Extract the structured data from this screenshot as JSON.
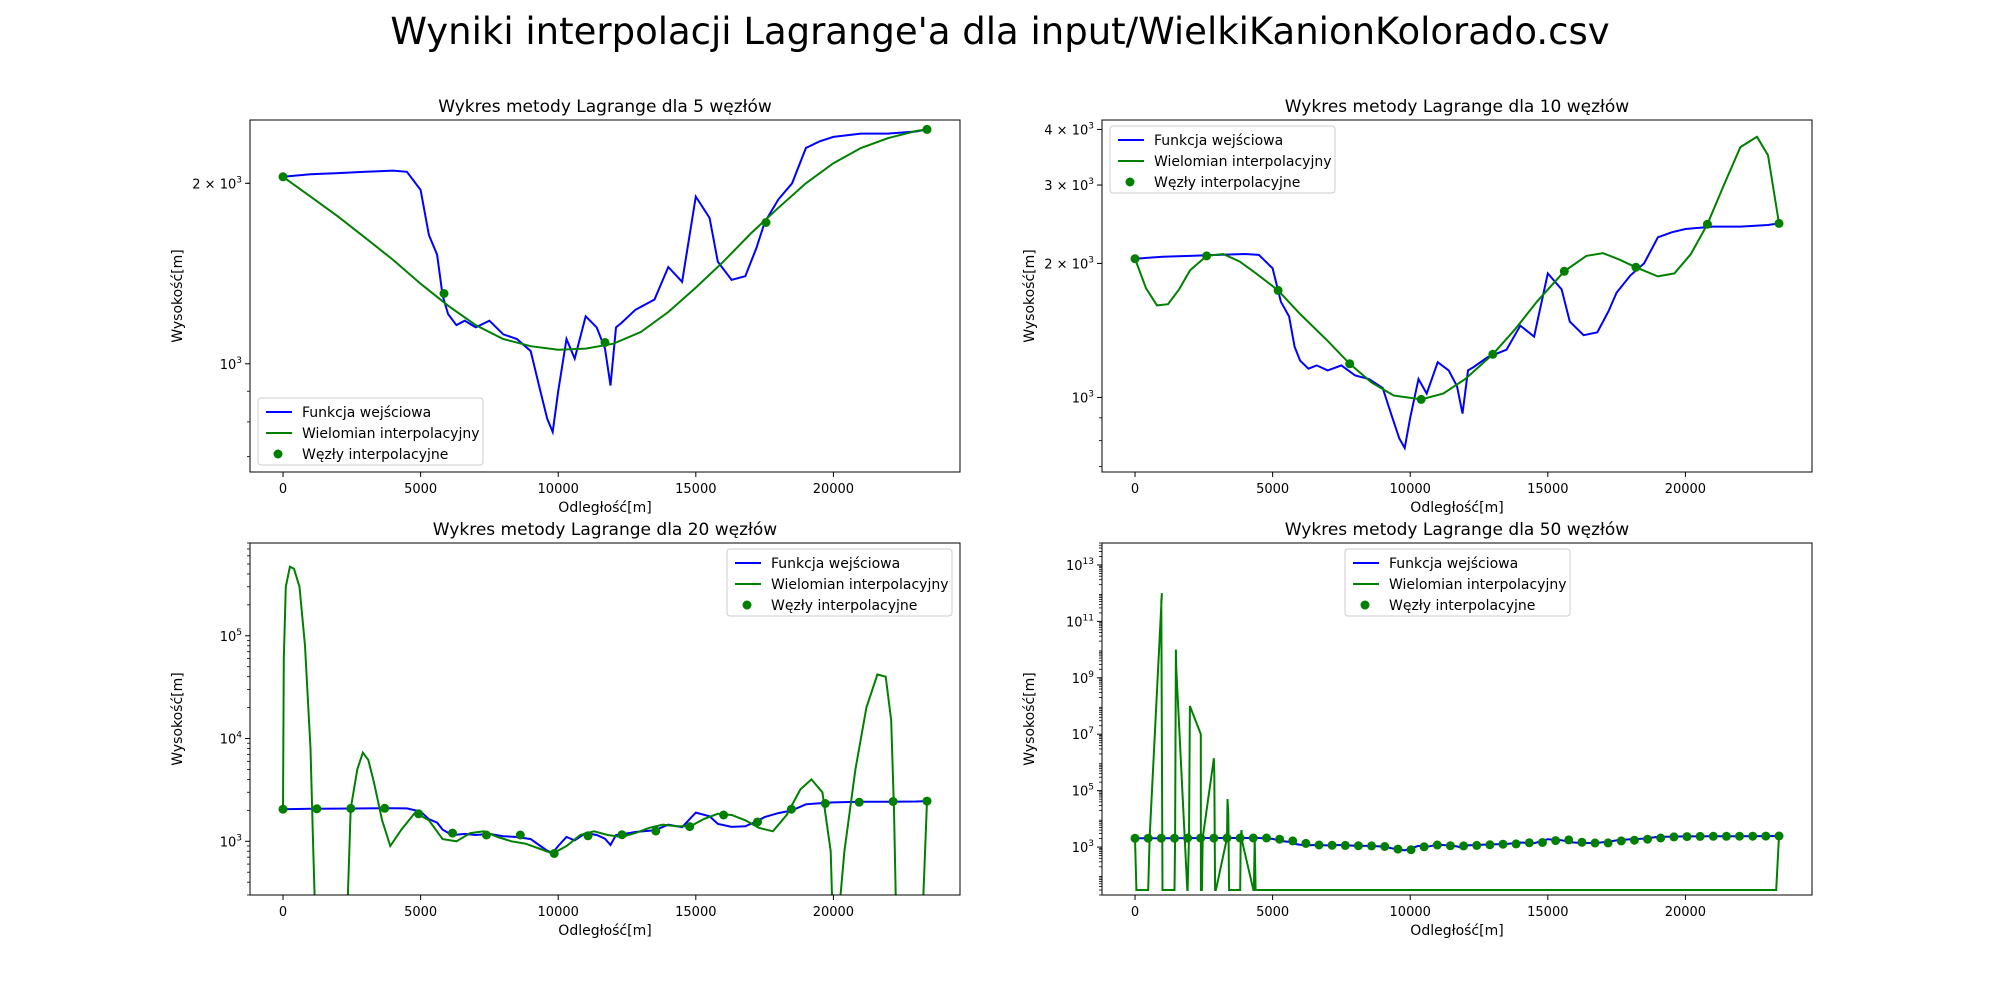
{
  "figure_title": "Wyniki interpolacji Lagrange'a dla input/WielkiKanionKolorado.csv",
  "colors": {
    "input": "#0000ff",
    "interp": "#008000",
    "nodes": "#008000",
    "axes": "#000000"
  },
  "chart_data": [
    {
      "type": "line",
      "title": "Wykres metody Lagrange dla 5 węzłów",
      "xlabel": "Odległość[m]",
      "ylabel": "Wysokość[m]",
      "xlim": [
        -1200,
        24600
      ],
      "ylim": [
        660,
        2550
      ],
      "yscale": "log",
      "x_ticks": [
        0,
        5000,
        10000,
        15000,
        20000
      ],
      "y_ticks": [
        {
          "value": 1000,
          "base": "10",
          "exp": "3"
        },
        {
          "value": 2000,
          "coef": "2 × 10",
          "exp": "3"
        }
      ],
      "legend": "lower-left",
      "legend_entries": [
        "Funkcja wejściowa",
        "Wielomian interpolacyjny",
        "Węzły interpolacyjne"
      ],
      "input_x": [
        0,
        1000,
        2000,
        3000,
        4000,
        4500,
        5000,
        5300,
        5600,
        5800,
        6000,
        6300,
        6600,
        7000,
        7500,
        8000,
        8500,
        9000,
        9300,
        9600,
        9800,
        10000,
        10300,
        10600,
        11000,
        11400,
        11700,
        11900,
        12100,
        12300,
        12800,
        13500,
        14000,
        14500,
        15000,
        15500,
        15800,
        16300,
        16800,
        17200,
        17500,
        18000,
        18500,
        19000,
        19500,
        20000,
        21000,
        22000,
        23000,
        23400
      ],
      "input_y": [
        2050,
        2070,
        2080,
        2090,
        2100,
        2090,
        1950,
        1640,
        1520,
        1300,
        1210,
        1160,
        1180,
        1150,
        1180,
        1120,
        1100,
        1050,
        920,
        810,
        770,
        900,
        1100,
        1020,
        1200,
        1150,
        1060,
        920,
        1150,
        1170,
        1230,
        1280,
        1450,
        1370,
        1900,
        1750,
        1480,
        1380,
        1400,
        1560,
        1720,
        1880,
        2000,
        2290,
        2350,
        2390,
        2420,
        2420,
        2440,
        2460
      ],
      "interp_x": [
        0,
        1000,
        2000,
        3000,
        4000,
        5000,
        6000,
        7000,
        8000,
        9000,
        10000,
        11000,
        12000,
        13000,
        14000,
        15000,
        16000,
        17000,
        18000,
        19000,
        20000,
        21000,
        22000,
        23000,
        23400
      ],
      "interp_y": [
        2050,
        1900,
        1760,
        1620,
        1490,
        1360,
        1250,
        1160,
        1100,
        1070,
        1055,
        1060,
        1080,
        1130,
        1220,
        1340,
        1480,
        1650,
        1820,
        2000,
        2160,
        2290,
        2380,
        2445,
        2460
      ],
      "nodes_x": [
        0,
        5850,
        11700,
        17550,
        23400
      ],
      "nodes_y": [
        2050,
        1310,
        1085,
        1720,
        2460
      ]
    },
    {
      "type": "line",
      "title": "Wykres metody Lagrange dla 10 węzłów",
      "xlabel": "Odległość[m]",
      "ylabel": "Wysokość[m]",
      "xlim": [
        -1200,
        24600
      ],
      "ylim": [
        680,
        4200
      ],
      "yscale": "log",
      "x_ticks": [
        0,
        5000,
        10000,
        15000,
        20000
      ],
      "y_ticks": [
        {
          "value": 1000,
          "base": "10",
          "exp": "3"
        },
        {
          "value": 2000,
          "coef": "2 × 10",
          "exp": "3"
        },
        {
          "value": 3000,
          "coef": "3 × 10",
          "exp": "3"
        },
        {
          "value": 4000,
          "coef": "4 × 10",
          "exp": "3"
        }
      ],
      "legend": "upper-left",
      "legend_entries": [
        "Funkcja wejściowa",
        "Wielomian interpolacyjny",
        "Węzły interpolacyjne"
      ],
      "input_x": [
        0,
        1000,
        2000,
        3000,
        4000,
        4500,
        5000,
        5300,
        5600,
        5800,
        6000,
        6300,
        6600,
        7000,
        7500,
        8000,
        8500,
        9000,
        9300,
        9600,
        9800,
        10000,
        10300,
        10600,
        11000,
        11400,
        11700,
        11900,
        12100,
        12300,
        12800,
        13500,
        14000,
        14500,
        15000,
        15500,
        15800,
        16300,
        16800,
        17200,
        17500,
        18000,
        18500,
        19000,
        19500,
        20000,
        21000,
        22000,
        23000,
        23400
      ],
      "input_y": [
        2050,
        2070,
        2080,
        2090,
        2100,
        2090,
        1950,
        1640,
        1520,
        1300,
        1210,
        1160,
        1180,
        1150,
        1180,
        1120,
        1100,
        1050,
        920,
        810,
        770,
        900,
        1100,
        1020,
        1200,
        1150,
        1060,
        920,
        1150,
        1170,
        1230,
        1280,
        1450,
        1370,
        1900,
        1750,
        1480,
        1380,
        1400,
        1560,
        1720,
        1880,
        2000,
        2290,
        2350,
        2390,
        2420,
        2420,
        2440,
        2460
      ],
      "interp_x": [
        0,
        400,
        800,
        1200,
        1600,
        2000,
        2600,
        3200,
        3800,
        4400,
        5200,
        6000,
        7000,
        7800,
        8600,
        9400,
        10400,
        11200,
        12000,
        13000,
        13800,
        14600,
        15600,
        16400,
        17000,
        17600,
        18200,
        19000,
        19600,
        20200,
        20800,
        21400,
        22000,
        22600,
        23000,
        23400
      ],
      "interp_y": [
        2050,
        1760,
        1610,
        1620,
        1750,
        1930,
        2080,
        2100,
        2020,
        1900,
        1740,
        1540,
        1340,
        1190,
        1080,
        1010,
        990,
        1020,
        1100,
        1250,
        1420,
        1640,
        1920,
        2080,
        2110,
        2040,
        1960,
        1870,
        1900,
        2100,
        2450,
        3000,
        3650,
        3850,
        3500,
        2460
      ],
      "nodes_x": [
        0,
        2600,
        5200,
        7800,
        10400,
        13000,
        15600,
        18200,
        20800,
        23400
      ],
      "nodes_y": [
        2050,
        2080,
        1740,
        1190,
        990,
        1250,
        1920,
        1960,
        2450,
        2460
      ]
    },
    {
      "type": "line",
      "title": "Wykres metody Lagrange dla 20 węzłów",
      "xlabel": "Odległość[m]",
      "ylabel": "Wysokość[m]",
      "xlim": [
        -1200,
        24600
      ],
      "ylim": [
        300,
        800000
      ],
      "yscale": "log",
      "x_ticks": [
        0,
        5000,
        10000,
        15000,
        20000
      ],
      "y_ticks": [
        {
          "value": 1000,
          "base": "10",
          "exp": "3"
        },
        {
          "value": 10000,
          "base": "10",
          "exp": "4"
        },
        {
          "value": 100000,
          "base": "10",
          "exp": "5"
        }
      ],
      "legend": "upper-right",
      "legend_entries": [
        "Funkcja wejściowa",
        "Wielomian interpolacyjny",
        "Węzły interpolacyjne"
      ],
      "input_x": [
        0,
        1000,
        2000,
        3000,
        4000,
        4500,
        5000,
        5300,
        5600,
        5800,
        6000,
        6300,
        6600,
        7000,
        7500,
        8000,
        8500,
        9000,
        9300,
        9600,
        9800,
        10000,
        10300,
        10600,
        11000,
        11400,
        11700,
        11900,
        12100,
        12300,
        12800,
        13500,
        14000,
        14500,
        15000,
        15500,
        15800,
        16300,
        16800,
        17200,
        17500,
        18000,
        18500,
        19000,
        19500,
        20000,
        21000,
        22000,
        23000,
        23400
      ],
      "input_y": [
        2050,
        2070,
        2080,
        2090,
        2100,
        2090,
        1950,
        1640,
        1520,
        1300,
        1210,
        1160,
        1180,
        1150,
        1180,
        1120,
        1100,
        1050,
        920,
        810,
        770,
        900,
        1100,
        1020,
        1200,
        1150,
        1060,
        920,
        1150,
        1170,
        1230,
        1280,
        1450,
        1370,
        1900,
        1750,
        1480,
        1380,
        1400,
        1560,
        1720,
        1880,
        2000,
        2290,
        2350,
        2390,
        2420,
        2420,
        2440,
        2460
      ],
      "interp_x": [
        0,
        30,
        100,
        250,
        400,
        600,
        800,
        1000,
        1100,
        1200,
        1400,
        1800,
        2100,
        2300,
        2460,
        2700,
        2900,
        3100,
        3300,
        3600,
        3900,
        4300,
        4800,
        5300,
        5800,
        6300,
        6800,
        7300,
        7800,
        8300,
        8800,
        9300,
        9800,
        10300,
        10800,
        11300,
        11800,
        12300,
        12800,
        13300,
        13800,
        14300,
        14800,
        15300,
        15800,
        16300,
        16800,
        17300,
        17800,
        18300,
        18800,
        19200,
        19600,
        19900,
        20000,
        20100,
        20400,
        20800,
        21200,
        21600,
        21900,
        22100,
        22200,
        22300,
        22500,
        22800,
        23000,
        23200,
        23400
      ],
      "interp_y": [
        2050,
        60000,
        300000,
        470000,
        450000,
        300000,
        80000,
        8000,
        800,
        100,
        100,
        100,
        100,
        100,
        2080,
        5000,
        7300,
        6200,
        3800,
        1600,
        900,
        1300,
        1900,
        1600,
        1050,
        1000,
        1200,
        1250,
        1100,
        1000,
        950,
        850,
        760,
        900,
        1150,
        1250,
        1150,
        1100,
        1200,
        1350,
        1450,
        1400,
        1400,
        1650,
        1850,
        1800,
        1600,
        1350,
        1250,
        1800,
        3200,
        4000,
        3000,
        800,
        100,
        100,
        800,
        5000,
        20000,
        42000,
        40000,
        15000,
        2000,
        100,
        100,
        100,
        100,
        100,
        2460
      ],
      "nodes_x": [
        0,
        1232,
        2463,
        3695,
        4926,
        6158,
        7389,
        8621,
        9853,
        11084,
        12316,
        13547,
        14779,
        16011,
        17242,
        18474,
        19705,
        20937,
        22168,
        23400
      ],
      "nodes_y": [
        2050,
        2070,
        2090,
        2095,
        1850,
        1200,
        1150,
        1150,
        760,
        1130,
        1160,
        1260,
        1390,
        1800,
        1540,
        2050,
        2330,
        2400,
        2440,
        2460
      ]
    },
    {
      "type": "line",
      "title": "Wykres metody Lagrange dla 50 węzłów",
      "xlabel": "Odległość[m]",
      "ylabel": "Wysokość[m]",
      "xlim": [
        -1200,
        24600
      ],
      "ylim": [
        20,
        60000000000000.0
      ],
      "yscale": "log",
      "x_ticks": [
        0,
        5000,
        10000,
        15000,
        20000
      ],
      "y_ticks": [
        {
          "value": 1000,
          "base": "10",
          "exp": "3"
        },
        {
          "value": 100000,
          "base": "10",
          "exp": "5"
        },
        {
          "value": 10000000,
          "base": "10",
          "exp": "7"
        },
        {
          "value": 1000000000,
          "base": "10",
          "exp": "9"
        },
        {
          "value": 100000000000,
          "base": "10",
          "exp": "11"
        },
        {
          "value": 10000000000000,
          "base": "10",
          "exp": "13"
        }
      ],
      "legend": "upper-center",
      "legend_entries": [
        "Funkcja wejściowa",
        "Wielomian interpolacyjny",
        "Węzły interpolacyjne"
      ],
      "input_x": [
        0,
        1000,
        2000,
        3000,
        4000,
        4500,
        5000,
        5300,
        5600,
        5800,
        6000,
        6300,
        6600,
        7000,
        7500,
        8000,
        8500,
        9000,
        9300,
        9600,
        9800,
        10000,
        10300,
        10600,
        11000,
        11400,
        11700,
        11900,
        12100,
        12300,
        12800,
        13500,
        14000,
        14500,
        15000,
        15500,
        15800,
        16300,
        16800,
        17200,
        17500,
        18000,
        18500,
        19000,
        19500,
        20000,
        21000,
        22000,
        23000,
        23400
      ],
      "input_y": [
        2050,
        2070,
        2080,
        2090,
        2100,
        2090,
        1950,
        1640,
        1520,
        1300,
        1210,
        1160,
        1180,
        1150,
        1180,
        1120,
        1100,
        1050,
        920,
        810,
        770,
        900,
        1100,
        1020,
        1200,
        1150,
        1060,
        920,
        1150,
        1170,
        1230,
        1280,
        1450,
        1370,
        1900,
        1750,
        1480,
        1380,
        1400,
        1560,
        1720,
        1880,
        2000,
        2290,
        2350,
        2390,
        2420,
        2420,
        2440,
        2460
      ],
      "interp_x": [
        0,
        50,
        478,
        530,
        975,
        955,
        1000,
        1434,
        1455,
        1485,
        1500,
        1900,
        1910,
        1960,
        1993,
        2389,
        2395,
        2430,
        2460,
        2867,
        2880,
        2910,
        2940,
        3344,
        3360,
        3390,
        3420,
        3822,
        3840,
        3870,
        3900,
        4300,
        4320,
        4350,
        4380,
        4778,
        4800,
        4840,
        4870,
        5255,
        5290,
        5330,
        5370,
        5733,
        5800,
        5850,
        5900,
        6211,
        6260,
        6300,
        6350,
        17200,
        17250,
        17300,
        17340,
        17678,
        17730,
        17800,
        17840,
        18155,
        18200,
        18300,
        18320,
        18633,
        18700,
        18750,
        18800,
        19111,
        19150,
        19220,
        19270,
        19588,
        19640,
        19700,
        19750,
        20066,
        20120,
        20180,
        20230,
        20544,
        20600,
        20660,
        20710,
        21022,
        21080,
        21140,
        21190,
        21499,
        21560,
        21620,
        21680,
        21977,
        22040,
        22100,
        22160,
        22455,
        22520,
        22590,
        22650,
        22933,
        23000,
        23080,
        23150,
        23300,
        23400
      ],
      "interp_y": [
        2050,
        30,
        30,
        2070,
        1000000000000.0,
        500000000000.0,
        30,
        30,
        2080,
        10000000000.0,
        2000000000.0,
        30,
        30,
        2090,
        100000000.0,
        10000000.0,
        30,
        30,
        2095,
        1400000.0,
        400000.0,
        30,
        30,
        2100,
        50000.0,
        15000.0,
        30,
        30,
        2090,
        4000,
        1500,
        30,
        30,
        2050,
        30,
        30,
        30,
        30,
        30,
        30,
        30,
        30,
        30,
        30,
        30,
        30,
        30,
        30,
        30,
        30,
        30,
        30,
        30,
        30,
        30,
        30,
        30,
        30,
        30,
        30,
        30,
        30,
        30,
        30,
        30,
        30,
        30,
        30,
        30,
        30,
        30,
        30,
        30,
        30,
        30,
        30,
        30,
        30,
        30,
        30,
        30,
        30,
        30,
        30,
        30,
        30,
        30,
        30,
        30,
        30,
        30,
        30,
        30,
        30,
        30,
        30,
        30,
        30,
        30,
        30,
        30,
        30,
        30,
        30,
        2460
      ],
      "nodes_x": [
        0,
        478,
        955,
        1433,
        1910,
        2388,
        2865,
        3343,
        3820,
        4298,
        4776,
        5253,
        5731,
        6208,
        6686,
        7163,
        7641,
        8118,
        8596,
        9073,
        9551,
        10029,
        10506,
        10984,
        11461,
        11939,
        12416,
        12894,
        13371,
        13849,
        14327,
        14804,
        15282,
        15759,
        16237,
        16714,
        17192,
        17669,
        18147,
        18624,
        19102,
        19580,
        20057,
        20535,
        21012,
        21490,
        21967,
        22445,
        22922,
        23400
      ],
      "nodes_y": [
        2050,
        2060,
        2065,
        2070,
        2075,
        2080,
        2085,
        2090,
        2095,
        2100,
        2090,
        1900,
        1650,
        1350,
        1180,
        1160,
        1150,
        1120,
        1100,
        1050,
        850,
        810,
        1020,
        1180,
        1120,
        1100,
        1150,
        1200,
        1260,
        1300,
        1420,
        1450,
        1700,
        1800,
        1480,
        1390,
        1410,
        1650,
        1750,
        1900,
        2100,
        2300,
        2350,
        2380,
        2400,
        2410,
        2420,
        2430,
        2440,
        2460
      ]
    }
  ]
}
